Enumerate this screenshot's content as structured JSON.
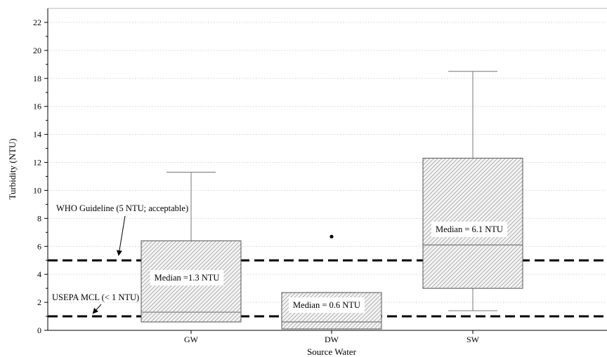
{
  "chart_data": {
    "type": "boxplot",
    "xlabel": "Source Water",
    "ylabel": "Turbidity (NTU)",
    "ylim": [
      0,
      23
    ],
    "yticks": [
      0,
      2,
      4,
      6,
      8,
      10,
      12,
      14,
      16,
      18,
      20,
      22
    ],
    "grid": true,
    "categories": [
      "GW",
      "DW",
      "SW"
    ],
    "boxes": [
      {
        "category": "GW",
        "q1": 0.6,
        "median": 1.3,
        "q3": 6.4,
        "whisker_low": 0.6,
        "whisker_high": 11.3,
        "outliers": [],
        "median_label": "Median =1.3 NTU"
      },
      {
        "category": "DW",
        "q1": 0.1,
        "median": 0.6,
        "q3": 2.7,
        "whisker_low": 0.1,
        "whisker_high": 2.7,
        "outliers": [
          6.7
        ],
        "median_label": "Median = 0.6 NTU"
      },
      {
        "category": "SW",
        "q1": 3.0,
        "median": 6.1,
        "q3": 12.3,
        "whisker_low": 1.4,
        "whisker_high": 18.5,
        "outliers": [],
        "median_label": "Median = 6.1 NTU"
      }
    ],
    "reference_lines": [
      {
        "value": 5,
        "label": "WHO Guideline (5 NTU; acceptable)"
      },
      {
        "value": 1,
        "label": "USEPA MCL (< 1 NTU)"
      }
    ]
  }
}
